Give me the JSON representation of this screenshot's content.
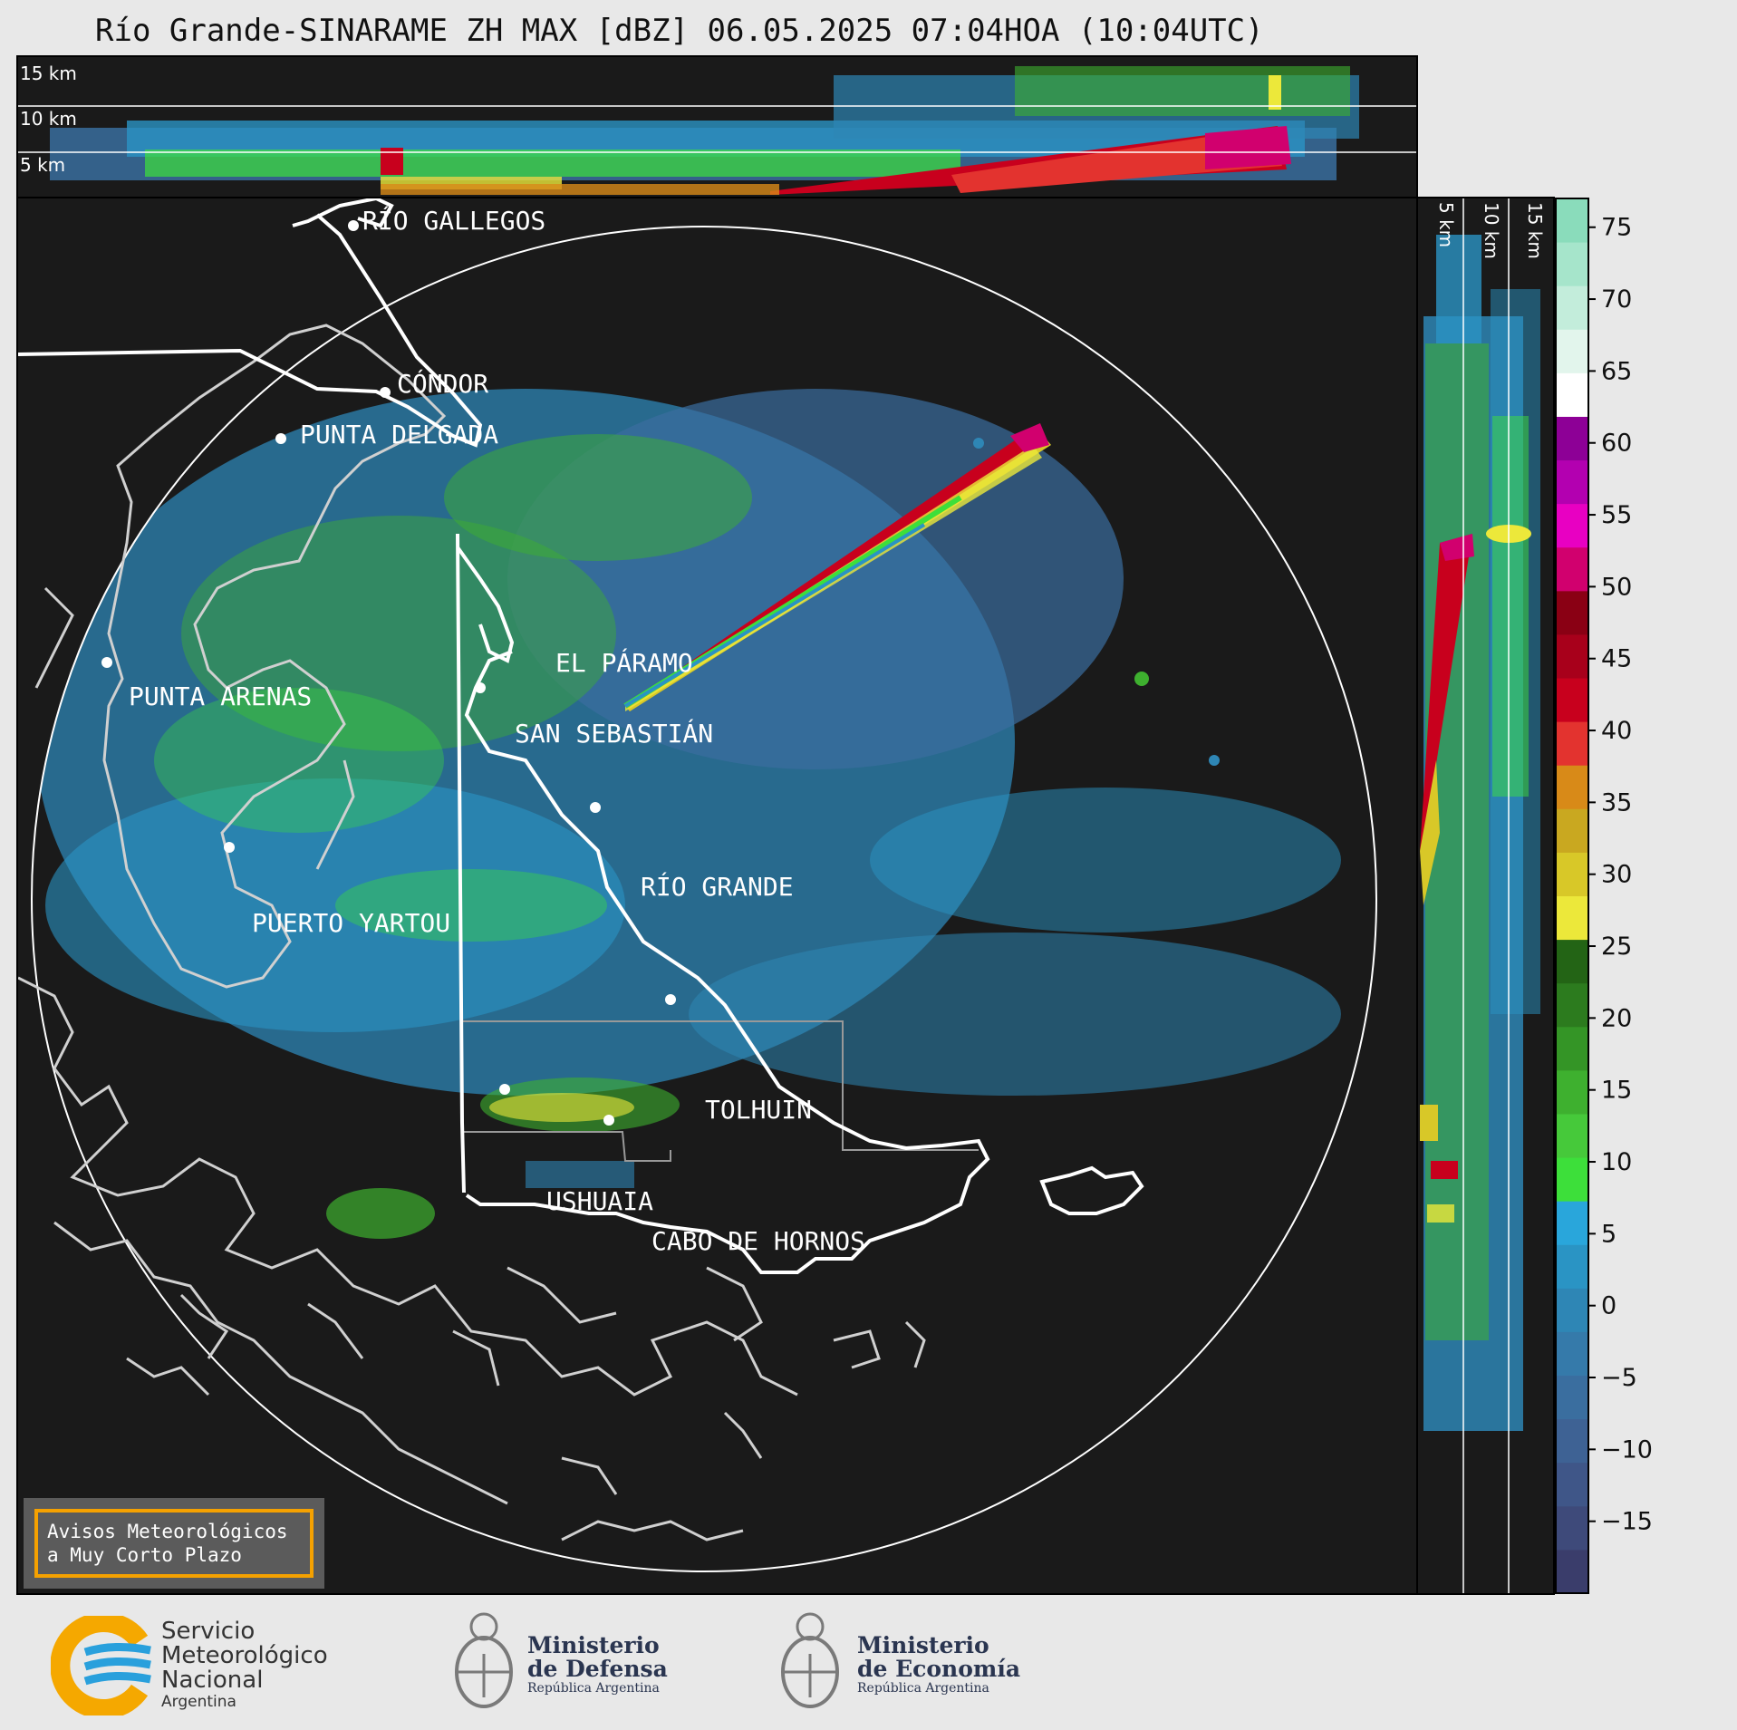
{
  "title": "Río Grande-SINARAME ZH MAX [dBZ] 06.05.2025 07:04HOA (10:04UTC)",
  "top_profile": {
    "height_labels": [
      "15 km",
      "10 km",
      "5 km"
    ]
  },
  "side_profile": {
    "height_labels": [
      "5 km",
      "10 km",
      "15 km"
    ]
  },
  "cities": [
    {
      "name": "RÍO GALLEGOS"
    },
    {
      "name": "CÓNDOR"
    },
    {
      "name": "PUNTA DELGADA"
    },
    {
      "name": "EL PÁRAMO"
    },
    {
      "name": "SAN SEBASTIÁN"
    },
    {
      "name": "PUNTA ARENAS"
    },
    {
      "name": "RÍO GRANDE"
    },
    {
      "name": "PUERTO YARTOU"
    },
    {
      "name": "TOLHUIN"
    },
    {
      "name": "USHUAIA"
    },
    {
      "name": "CABO DE HORNOS"
    }
  ],
  "colorbar": {
    "unit": "dBZ",
    "ticks": [
      "75",
      "70",
      "65",
      "60",
      "55",
      "50",
      "45",
      "40",
      "35",
      "30",
      "25",
      "20",
      "15",
      "10",
      "5",
      "0",
      "−5",
      "−10",
      "−15"
    ],
    "range": [
      -20,
      77
    ],
    "colors": [
      "#3a3d6b",
      "#3e4a7a",
      "#3f5688",
      "#3e6294",
      "#3a6e9f",
      "#357aaa",
      "#2e86b5",
      "#2a94c4",
      "#29a6db",
      "#3ddf3a",
      "#46c93a",
      "#3eb02f",
      "#349526",
      "#2c7b1e",
      "#236415",
      "#ece83a",
      "#d8c828",
      "#c9a820",
      "#d88a18",
      "#e3332f",
      "#c8001d",
      "#a8001b",
      "#8a0014",
      "#d1006e",
      "#e800c2",
      "#b300b0",
      "#8d0096",
      "#ffffff",
      "#e2f5ec",
      "#c3eddb",
      "#a6e5cb",
      "#8adcbb"
    ]
  },
  "notice": {
    "line1": "Avisos Meteorológicos",
    "line2": "a Muy Corto Plazo"
  },
  "logos": {
    "smn": {
      "line1": "Servicio",
      "line2": "Meteorológico",
      "line3": "Nacional",
      "line4": "Argentina"
    },
    "defensa": {
      "line1": "Ministerio",
      "line2": "de Defensa",
      "line3": "República Argentina"
    },
    "economia": {
      "line1": "Ministerio",
      "line2": "de Economía",
      "line3": "República Argentina"
    }
  }
}
